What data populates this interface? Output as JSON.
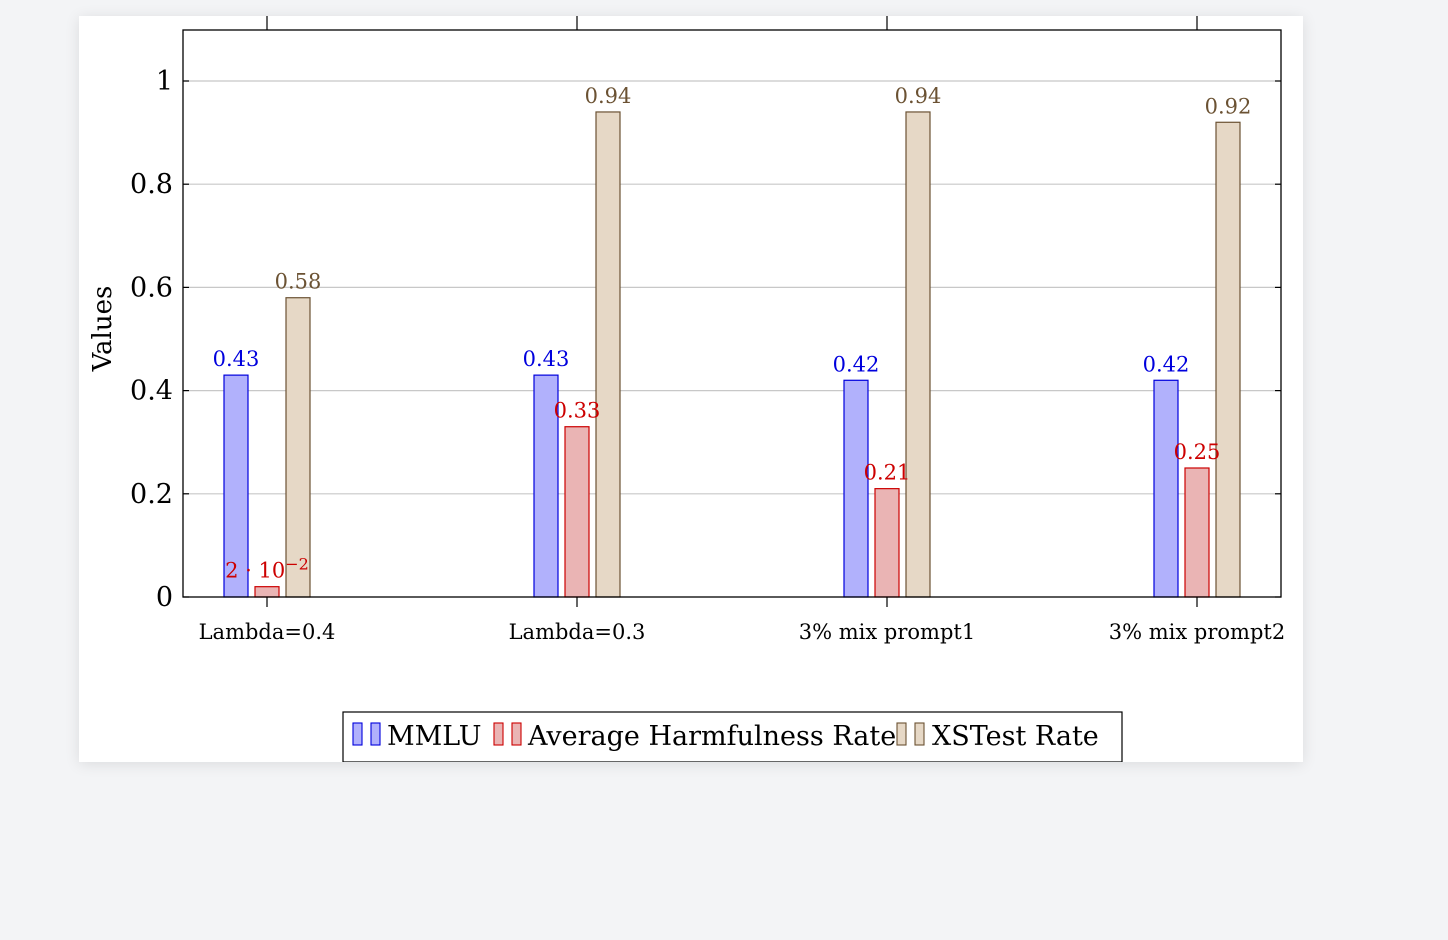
{
  "chart_data": {
    "type": "bar",
    "title": "",
    "xlabel": "",
    "ylabel": "Values",
    "ylim": [
      0,
      1.1
    ],
    "yticks": [
      0,
      0.2,
      0.4,
      0.6,
      0.8,
      1
    ],
    "ytick_labels": [
      "0",
      "0.2",
      "0.4",
      "0.6",
      "0.8",
      "1"
    ],
    "grid": "horizontal",
    "legend_position": "bottom-center",
    "categories": [
      "Lambda=0.4",
      "Lambda=0.3",
      "3% mix prompt1",
      "3% mix prompt2"
    ],
    "series": [
      {
        "name": "MMLU",
        "values": [
          0.43,
          0.43,
          0.42,
          0.42
        ],
        "labels": [
          "0.43",
          "0.43",
          "0.42",
          "0.42"
        ],
        "fill": "#b1b1fc",
        "stroke": "#0000dd",
        "label_color": "#0000dd"
      },
      {
        "name": "Average Harmfulness Rate",
        "values": [
          0.02,
          0.33,
          0.21,
          0.25
        ],
        "labels": [
          "2 · 10",
          "0.33",
          "0.21",
          "0.25"
        ],
        "label_exponent": [
          "−2",
          "",
          "",
          ""
        ],
        "fill": "#eab4b4",
        "stroke": "#cc0000",
        "label_color": "#cc0000"
      },
      {
        "name": "XSTest Rate",
        "values": [
          0.58,
          0.94,
          0.94,
          0.92
        ],
        "labels": [
          "0.58",
          "0.94",
          "0.94",
          "0.92"
        ],
        "fill": "#e6d8c6",
        "stroke": "#6b5233",
        "label_color": "#6b5233"
      }
    ]
  }
}
